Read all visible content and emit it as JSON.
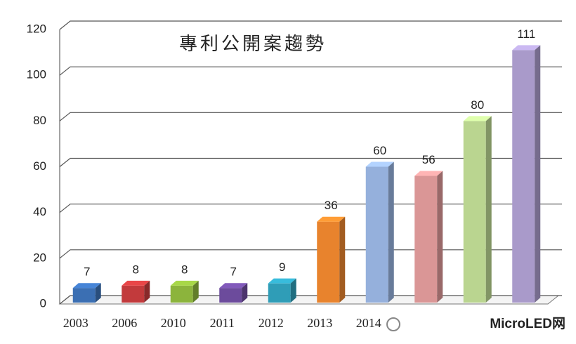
{
  "chart_data": {
    "type": "bar3d",
    "title": "專利公開案趨勢",
    "categories": [
      "2003",
      "2006",
      "2010",
      "2011",
      "2012",
      "2013",
      "2014",
      null,
      null,
      null
    ],
    "values": [
      7,
      8,
      8,
      7,
      9,
      36,
      60,
      56,
      80,
      111
    ],
    "colors": [
      "#3b6fb3",
      "#c23a3c",
      "#8cb43c",
      "#6c4b9c",
      "#2f9db7",
      "#e8832d",
      "#95b0dc",
      "#da9696",
      "#bad590",
      "#a99aca"
    ],
    "ylim": [
      0,
      120
    ],
    "yticks": [
      0,
      20,
      40,
      60,
      80,
      100,
      120
    ],
    "grid": true
  },
  "watermark": "MicroLED网"
}
